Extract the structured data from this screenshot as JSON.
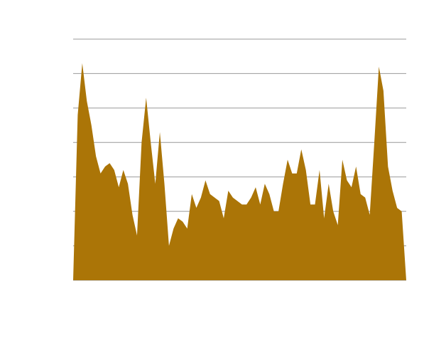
{
  "chart_data": {
    "type": "area",
    "color": "#ab7507",
    "grid": true,
    "ylim": [
      0,
      7
    ],
    "yticks": [
      0,
      1,
      2,
      3,
      4,
      5,
      6,
      7
    ],
    "categories": [
      null,
      null,
      null,
      null,
      null,
      null,
      null,
      null,
      null,
      null,
      null,
      null,
      null,
      null,
      null,
      null,
      null,
      null,
      null,
      null,
      null,
      null,
      null,
      null,
      null,
      null,
      null,
      null,
      null,
      null,
      null,
      null,
      null,
      null,
      null,
      null,
      null,
      null,
      null,
      null,
      null,
      null,
      null,
      null,
      null,
      null,
      null,
      null,
      null,
      null,
      null,
      null,
      null,
      null,
      null,
      null,
      null,
      null,
      null,
      null,
      null,
      null,
      null,
      null,
      null,
      null,
      null,
      null,
      null,
      null,
      null,
      null,
      null,
      null
    ],
    "values": [
      0,
      4.8,
      6.3,
      5.2,
      4.5,
      3.6,
      3.1,
      3.3,
      3.4,
      3.2,
      2.7,
      3.2,
      2.8,
      1.9,
      1.3,
      4.0,
      5.3,
      4.0,
      2.8,
      4.3,
      2.8,
      1.0,
      1.5,
      1.8,
      1.7,
      1.5,
      2.5,
      2.1,
      2.4,
      2.9,
      2.5,
      2.4,
      2.3,
      1.8,
      2.6,
      2.4,
      2.3,
      2.2,
      2.2,
      2.4,
      2.7,
      2.2,
      2.8,
      2.5,
      2.0,
      2.0,
      2.8,
      3.5,
      3.1,
      3.1,
      3.8,
      3.2,
      2.2,
      2.2,
      3.2,
      1.8,
      2.8,
      2.0,
      1.6,
      3.5,
      2.9,
      2.7,
      3.3,
      2.5,
      2.4,
      1.9,
      4.0,
      6.2,
      5.5,
      3.3,
      2.6,
      2.1,
      2.0,
      0
    ]
  }
}
